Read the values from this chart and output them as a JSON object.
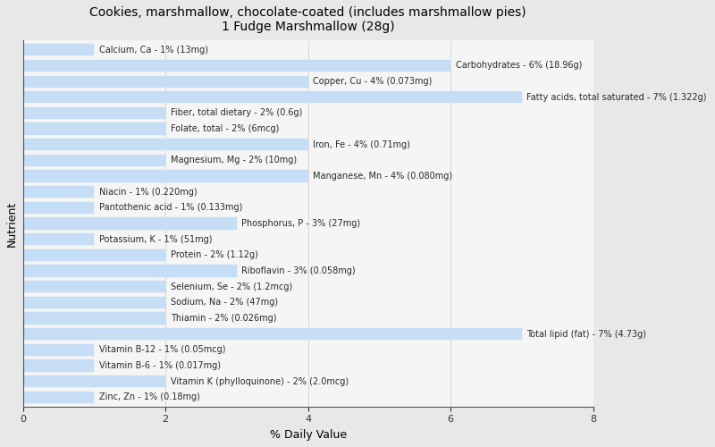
{
  "title": "Cookies, marshmallow, chocolate-coated (includes marshmallow pies)\n1 Fudge Marshmallow (28g)",
  "xlabel": "% Daily Value",
  "ylabel": "Nutrient",
  "xlim": [
    0,
    8
  ],
  "xticks": [
    0,
    2,
    4,
    6,
    8
  ],
  "background_color": "#e8e8e8",
  "plot_bg_color": "#f5f5f5",
  "bar_color": "#c5ddf5",
  "bar_edge_color": "#c5ddf5",
  "nutrients": [
    {
      "label": "Calcium, Ca - 1% (13mg)",
      "value": 1
    },
    {
      "label": "Carbohydrates - 6% (18.96g)",
      "value": 6
    },
    {
      "label": "Copper, Cu - 4% (0.073mg)",
      "value": 4
    },
    {
      "label": "Fatty acids, total saturated - 7% (1.322g)",
      "value": 7
    },
    {
      "label": "Fiber, total dietary - 2% (0.6g)",
      "value": 2
    },
    {
      "label": "Folate, total - 2% (6mcg)",
      "value": 2
    },
    {
      "label": "Iron, Fe - 4% (0.71mg)",
      "value": 4
    },
    {
      "label": "Magnesium, Mg - 2% (10mg)",
      "value": 2
    },
    {
      "label": "Manganese, Mn - 4% (0.080mg)",
      "value": 4
    },
    {
      "label": "Niacin - 1% (0.220mg)",
      "value": 1
    },
    {
      "label": "Pantothenic acid - 1% (0.133mg)",
      "value": 1
    },
    {
      "label": "Phosphorus, P - 3% (27mg)",
      "value": 3
    },
    {
      "label": "Potassium, K - 1% (51mg)",
      "value": 1
    },
    {
      "label": "Protein - 2% (1.12g)",
      "value": 2
    },
    {
      "label": "Riboflavin - 3% (0.058mg)",
      "value": 3
    },
    {
      "label": "Selenium, Se - 2% (1.2mcg)",
      "value": 2
    },
    {
      "label": "Sodium, Na - 2% (47mg)",
      "value": 2
    },
    {
      "label": "Thiamin - 2% (0.026mg)",
      "value": 2
    },
    {
      "label": "Total lipid (fat) - 7% (4.73g)",
      "value": 7
    },
    {
      "label": "Vitamin B-12 - 1% (0.05mcg)",
      "value": 1
    },
    {
      "label": "Vitamin B-6 - 1% (0.017mg)",
      "value": 1
    },
    {
      "label": "Vitamin K (phylloquinone) - 2% (2.0mcg)",
      "value": 2
    },
    {
      "label": "Zinc, Zn - 1% (0.18mg)",
      "value": 1
    }
  ],
  "group_tick_positions": [
    19.5,
    15.5,
    10.5,
    4.5,
    1.5
  ],
  "title_fontsize": 10,
  "axis_label_fontsize": 9,
  "bar_label_fontsize": 7,
  "bar_height": 0.75,
  "bar_gap": 0.25
}
